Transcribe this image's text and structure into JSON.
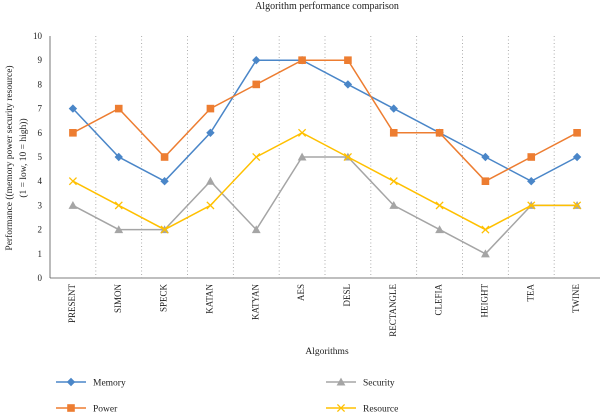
{
  "chart_data": {
    "type": "line",
    "title": "Algorithm performance comparison",
    "xlabel": "Algorithms",
    "ylabel_lines": [
      "Performance ((memory power security resource)",
      "(1 = low, 10 = high))"
    ],
    "ylim": [
      0,
      10
    ],
    "yticks": [
      0,
      1,
      2,
      3,
      4,
      5,
      6,
      7,
      8,
      9,
      10
    ],
    "categories": [
      "PRESENT",
      "SIMON",
      "SPECK",
      "KATAN",
      "KATYAN",
      "AES",
      "DESL",
      "RECTANGLE",
      "CLEFIA",
      "HEIGHT",
      "TEA",
      "TWINE"
    ],
    "grid": "vertical dotted",
    "legend_position": "bottom",
    "series": [
      {
        "name": "Memory",
        "marker": "diamond",
        "color": "#4a86c8",
        "values": [
          7,
          5,
          4,
          6,
          9,
          9,
          8,
          7,
          6,
          5,
          4,
          5
        ]
      },
      {
        "name": "Power",
        "marker": "square",
        "color": "#ed7d31",
        "values": [
          6,
          7,
          5,
          7,
          8,
          9,
          9,
          6,
          6,
          4,
          5,
          6
        ]
      },
      {
        "name": "Security",
        "marker": "triangle",
        "color": "#a5a5a5",
        "values": [
          3,
          2,
          2,
          4,
          2,
          5,
          5,
          3,
          2,
          1,
          3,
          3
        ]
      },
      {
        "name": "Resource",
        "marker": "x",
        "color": "#ffc000",
        "values": [
          4,
          3,
          2,
          3,
          5,
          6,
          5,
          4,
          3,
          2,
          3,
          3
        ]
      }
    ]
  }
}
